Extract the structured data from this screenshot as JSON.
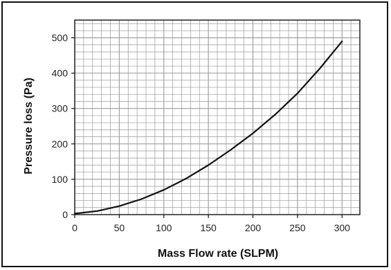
{
  "chart_data": {
    "type": "line",
    "title": "",
    "xlabel": "Mass Flow rate (SLPM)",
    "ylabel": "Pressure loss (Pa)",
    "xlim": [
      0,
      320
    ],
    "ylim": [
      0,
      550
    ],
    "x_ticks": [
      "0",
      "50",
      "100",
      "150",
      "200",
      "250",
      "300"
    ],
    "y_ticks": [
      "0",
      "100",
      "200",
      "300",
      "400",
      "500"
    ],
    "grid": true,
    "legend": "none",
    "colors": {
      "line": "#111111",
      "grid": "#9a9a9a",
      "axis": "#111111"
    },
    "series": [
      {
        "x": [
          0,
          25,
          50,
          75,
          100,
          125,
          150,
          175,
          200,
          225,
          250,
          275,
          300
        ],
        "values": [
          3,
          10,
          24,
          44,
          70,
          102,
          140,
          183,
          230,
          283,
          343,
          413,
          490
        ]
      }
    ]
  }
}
